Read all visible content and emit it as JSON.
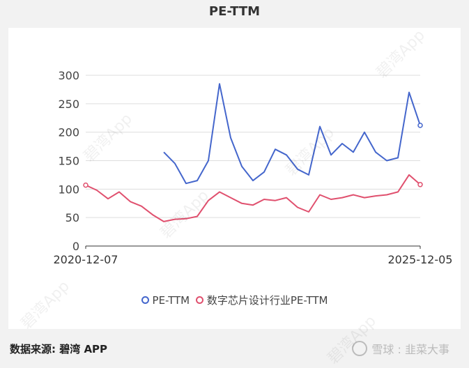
{
  "title": "PE-TTM",
  "source_label": "数据来源: 碧湾 APP",
  "brand_label": "雪球 : 韭菜大事",
  "watermark": "碧湾App",
  "colors": {
    "pe_ttm": "#4466cc",
    "industry_pe_ttm": "#e0506e",
    "grid": "#dddddd",
    "background": "#f2f2f2",
    "panel": "#ffffff"
  },
  "legend": [
    {
      "label": "PE-TTM",
      "color": "#4466cc"
    },
    {
      "label": "数字芯片设计行业PE-TTM",
      "color": "#e0506e"
    }
  ],
  "chart_data": {
    "type": "line",
    "title": "PE-TTM",
    "xlabel": "",
    "ylabel": "",
    "x_range": [
      "2020-12-07",
      "2025-12-05"
    ],
    "x_tick_labels": [
      "2020-12-07",
      "2025-12-05"
    ],
    "ylim": [
      0,
      300
    ],
    "y_ticks": [
      0,
      50,
      100,
      150,
      200,
      250,
      300
    ],
    "grid": true,
    "legend_position": "bottom",
    "x": [
      "2020-12",
      "2021-03",
      "2021-06",
      "2021-09",
      "2021-12",
      "2022-03",
      "2022-05",
      "2022-06",
      "2022-08",
      "2022-09",
      "2022-11",
      "2023-01",
      "2023-02",
      "2023-04",
      "2023-06",
      "2023-08",
      "2023-10",
      "2023-12",
      "2024-02",
      "2024-03",
      "2024-05",
      "2024-07",
      "2024-09",
      "2024-10",
      "2024-12",
      "2025-02",
      "2025-04",
      "2025-06",
      "2025-08",
      "2025-10",
      "2025-12"
    ],
    "series": [
      {
        "name": "PE-TTM",
        "values": [
          null,
          null,
          null,
          null,
          null,
          null,
          null,
          165,
          145,
          110,
          115,
          150,
          285,
          190,
          140,
          115,
          130,
          170,
          160,
          135,
          125,
          210,
          160,
          180,
          165,
          200,
          165,
          150,
          155,
          270,
          212
        ]
      },
      {
        "name": "数字芯片设计行业PE-TTM",
        "values": [
          107,
          98,
          83,
          95,
          78,
          70,
          55,
          43,
          47,
          48,
          52,
          80,
          95,
          85,
          75,
          72,
          82,
          80,
          85,
          68,
          60,
          90,
          82,
          85,
          90,
          85,
          88,
          90,
          95,
          125,
          108
        ]
      }
    ]
  }
}
